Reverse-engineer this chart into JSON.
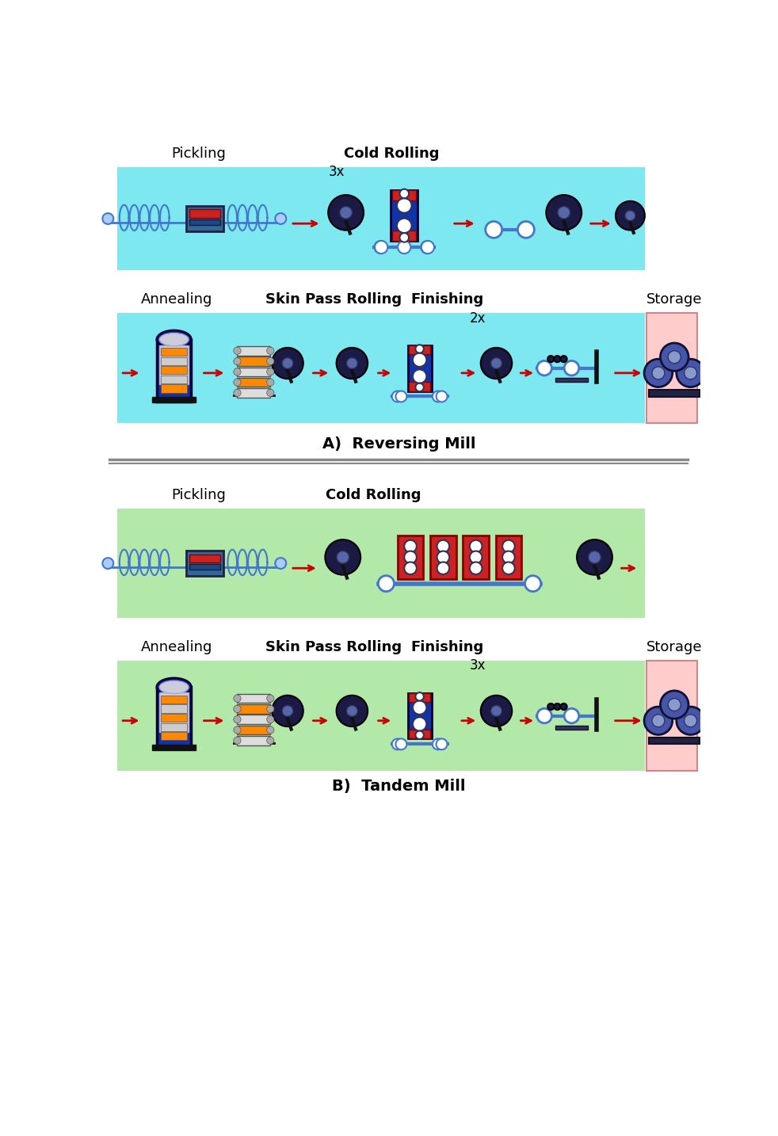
{
  "title_A": "A)  Reversing Mill",
  "title_B": "B)  Tandem Mill",
  "bg_cyan": "#7DE8F0",
  "bg_green": "#B2E8A8",
  "bg_pink": "#FFCCCC",
  "bg_white": "#FFFFFF",
  "label_pickling_A": "Pickling",
  "label_cold_rolling_A": "Cold Rolling",
  "label_annealing_A": "Annealing",
  "label_skin_pass_A": "Skin Pass Rolling",
  "label_finishing_A": "Finishing",
  "label_storage_A": "Storage",
  "label_pickling_B": "Pickling",
  "label_cold_rolling_B": "Cold Rolling",
  "label_annealing_B": "Annealing",
  "label_skin_pass_B": "Skin Pass Rolling",
  "label_finishing_B": "Finishing",
  "label_storage_B": "Storage",
  "label_3x_A": "3x",
  "label_2x_A": "2x",
  "label_3x_B": "3x",
  "separator_color": "#888888",
  "arrow_color": "#CC0000",
  "blue_dark": "#1133AA",
  "blue_mid": "#4477CC",
  "red_eq": "#CC2222",
  "black_eq": "#111111",
  "white_eq": "#FFFFFF",
  "orange_eq": "#FF8800",
  "gray_eq": "#AAAAAA"
}
